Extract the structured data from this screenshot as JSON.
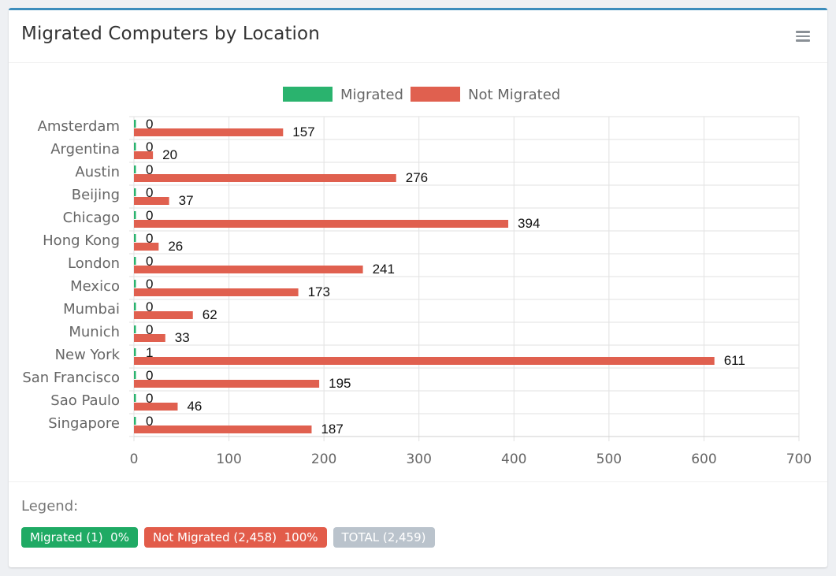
{
  "card": {
    "title": "Migrated Computers by Location"
  },
  "icons": {
    "menu": "hamburger-menu-icon"
  },
  "colors": {
    "migrated": "#2ab36e",
    "not_migrated": "#e0604f",
    "accent": "#3c8dbc",
    "total": "#bac3cc"
  },
  "chart_data": {
    "type": "bar",
    "orientation": "horizontal",
    "categories": [
      "Amsterdam",
      "Argentina",
      "Austin",
      "Beijing",
      "Chicago",
      "Hong Kong",
      "London",
      "Mexico",
      "Mumbai",
      "Munich",
      "New York",
      "San Francisco",
      "Sao Paulo",
      "Singapore"
    ],
    "series": [
      {
        "name": "Migrated",
        "values": [
          0,
          0,
          0,
          0,
          0,
          0,
          0,
          0,
          0,
          0,
          1,
          0,
          0,
          0
        ]
      },
      {
        "name": "Not Migrated",
        "values": [
          157,
          20,
          276,
          37,
          394,
          26,
          241,
          173,
          62,
          33,
          611,
          195,
          46,
          187
        ]
      }
    ],
    "xlim": [
      0,
      700
    ],
    "xticks": [
      0,
      100,
      200,
      300,
      400,
      500,
      600,
      700
    ],
    "grid": true,
    "legend_position": "top",
    "data_labels": true
  },
  "footer": {
    "legend_label": "Legend:",
    "badges": {
      "migrated": "Migrated (1)  0%",
      "not_migrated": "Not Migrated (2,458)  100%",
      "total": "TOTAL (2,459)"
    }
  }
}
